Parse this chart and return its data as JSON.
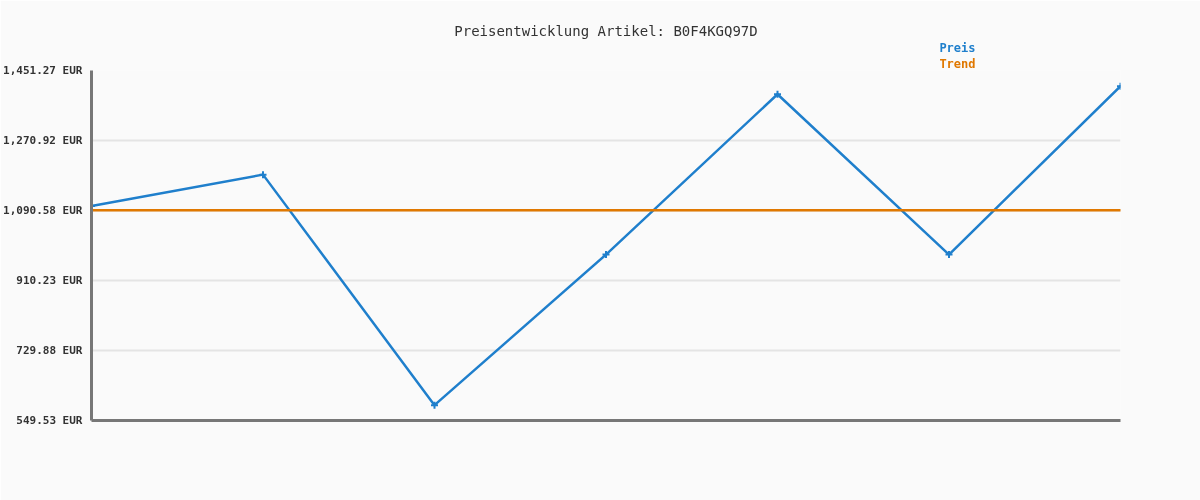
{
  "chart_data": {
    "type": "line",
    "title": "Preisentwicklung Artikel: B0F4KGQ97D",
    "categories": [
      null,
      null,
      null,
      null,
      null,
      null,
      null
    ],
    "series": [
      {
        "name": "Preis",
        "color": "#1f7fcc",
        "values": [
          1102,
          1183,
          589,
          977,
          1390,
          977,
          1411
        ]
      },
      {
        "name": "Trend",
        "color": "#e07800",
        "values": [
          1091,
          1091,
          1091,
          1091,
          1091,
          1091,
          1091
        ],
        "marker": "none"
      }
    ],
    "ylim": [
      549.53,
      1451.27
    ],
    "yticks": [
      {
        "value": 549.53,
        "label": "549.53 EUR"
      },
      {
        "value": 729.88,
        "label": "729.88 EUR"
      },
      {
        "value": 910.23,
        "label": "910.23 EUR"
      },
      {
        "value": 1090.58,
        "label": "1,090.58 EUR"
      },
      {
        "value": 1270.92,
        "label": "1,270.92 EUR"
      },
      {
        "value": 1451.27,
        "label": "1,451.27 EUR"
      }
    ],
    "grid": "y",
    "legend": "top right",
    "tick_labels": "y",
    "marker": "cross",
    "line_style": "solid"
  }
}
